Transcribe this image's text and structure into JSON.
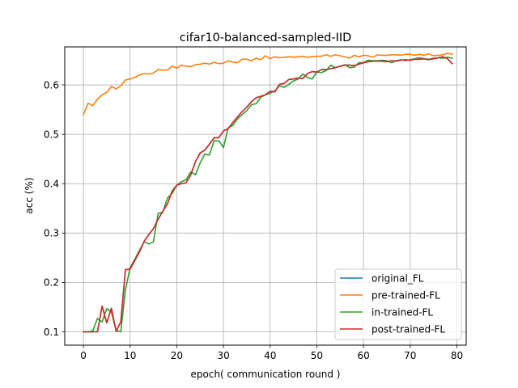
{
  "chart_data": {
    "type": "line",
    "title": "cifar10-balanced-sampled-IID",
    "xlabel": "epoch( communication round )",
    "ylabel": "acc (%)",
    "xlim": [
      -4,
      82
    ],
    "ylim": [
      0.073,
      0.677
    ],
    "xticks": [
      0,
      10,
      20,
      30,
      40,
      50,
      60,
      70,
      80
    ],
    "yticks": [
      0.1,
      0.2,
      0.3,
      0.4,
      0.5,
      0.6
    ],
    "xtick_labels": [
      "0",
      "10",
      "20",
      "30",
      "40",
      "50",
      "60",
      "70",
      "80"
    ],
    "ytick_labels": [
      "0.1",
      "0.2",
      "0.3",
      "0.4",
      "0.5",
      "0.6"
    ],
    "grid": true,
    "legend_position": "lower-right",
    "series": [
      {
        "name": "original_FL",
        "color": "#1f77b4",
        "x": [
          0,
          1,
          2,
          3,
          4,
          5,
          6,
          7,
          8,
          9,
          10,
          11,
          12,
          13,
          14,
          15,
          16,
          17,
          18,
          19,
          20,
          21,
          22,
          23,
          24,
          25,
          26,
          27,
          28,
          29,
          30,
          31,
          32,
          33,
          34,
          35,
          36,
          37,
          38,
          39,
          40,
          41,
          42,
          43,
          44,
          45,
          46,
          47,
          48,
          49,
          50,
          51,
          52,
          53,
          54,
          55,
          56,
          57,
          58,
          59,
          60,
          61,
          62,
          63,
          64,
          65,
          66,
          67,
          68,
          69,
          70,
          71,
          72,
          73,
          74,
          75,
          76,
          77,
          78,
          79
        ],
        "values": [
          0.1,
          0.1,
          0.1,
          0.1,
          0.152,
          0.118,
          0.148,
          0.101,
          0.12,
          0.226,
          0.227,
          0.244,
          0.262,
          0.283,
          0.297,
          0.309,
          0.328,
          0.344,
          0.359,
          0.385,
          0.397,
          0.4,
          0.402,
          0.418,
          0.445,
          0.462,
          0.468,
          0.48,
          0.493,
          0.493,
          0.507,
          0.511,
          0.524,
          0.535,
          0.546,
          0.555,
          0.566,
          0.574,
          0.577,
          0.58,
          0.587,
          0.586,
          0.601,
          0.603,
          0.611,
          0.612,
          0.614,
          0.613,
          0.623,
          0.627,
          0.626,
          0.631,
          0.631,
          0.633,
          0.635,
          0.638,
          0.64,
          0.64,
          0.639,
          0.642,
          0.645,
          0.647,
          0.648,
          0.648,
          0.648,
          0.647,
          0.649,
          0.648,
          0.65,
          0.651,
          0.65,
          0.652,
          0.652,
          0.653,
          0.651,
          0.653,
          0.655,
          0.657,
          0.653,
          0.643
        ]
      },
      {
        "name": "pre-trained-FL",
        "color": "#ff7f0e",
        "x": [
          0,
          1,
          2,
          3,
          4,
          5,
          6,
          7,
          8,
          9,
          10,
          11,
          12,
          13,
          14,
          15,
          16,
          17,
          18,
          19,
          20,
          21,
          22,
          23,
          24,
          25,
          26,
          27,
          28,
          29,
          30,
          31,
          32,
          33,
          34,
          35,
          36,
          37,
          38,
          39,
          40,
          41,
          42,
          43,
          44,
          45,
          46,
          47,
          48,
          49,
          50,
          51,
          52,
          53,
          54,
          55,
          56,
          57,
          58,
          59,
          60,
          61,
          62,
          63,
          64,
          65,
          66,
          67,
          68,
          69,
          70,
          71,
          72,
          73,
          74,
          75,
          76,
          77,
          78,
          79
        ],
        "values": [
          0.54,
          0.563,
          0.558,
          0.571,
          0.58,
          0.585,
          0.597,
          0.592,
          0.598,
          0.61,
          0.612,
          0.615,
          0.62,
          0.623,
          0.622,
          0.624,
          0.631,
          0.63,
          0.63,
          0.638,
          0.634,
          0.64,
          0.638,
          0.637,
          0.641,
          0.642,
          0.644,
          0.642,
          0.646,
          0.643,
          0.644,
          0.649,
          0.646,
          0.645,
          0.652,
          0.652,
          0.649,
          0.654,
          0.651,
          0.659,
          0.653,
          0.657,
          0.655,
          0.656,
          0.657,
          0.656,
          0.657,
          0.658,
          0.656,
          0.657,
          0.658,
          0.658,
          0.661,
          0.658,
          0.661,
          0.659,
          0.657,
          0.654,
          0.66,
          0.657,
          0.66,
          0.659,
          0.656,
          0.661,
          0.66,
          0.66,
          0.661,
          0.661,
          0.66,
          0.662,
          0.662,
          0.66,
          0.662,
          0.66,
          0.663,
          0.659,
          0.66,
          0.661,
          0.664,
          0.662
        ]
      },
      {
        "name": "in-trained-FL",
        "color": "#2ca02c",
        "x": [
          0,
          1,
          2,
          3,
          4,
          5,
          6,
          7,
          8,
          9,
          10,
          11,
          12,
          13,
          14,
          15,
          16,
          17,
          18,
          19,
          20,
          21,
          22,
          23,
          24,
          25,
          26,
          27,
          28,
          29,
          30,
          31,
          32,
          33,
          34,
          35,
          36,
          37,
          38,
          39,
          40,
          41,
          42,
          43,
          44,
          45,
          46,
          47,
          48,
          49,
          50,
          51,
          52,
          53,
          54,
          55,
          56,
          57,
          58,
          59,
          60,
          61,
          62,
          63,
          64,
          65,
          66,
          67,
          68,
          69,
          70,
          71,
          72,
          73,
          74,
          75,
          76,
          77,
          78,
          79
        ],
        "values": [
          0.1,
          0.1,
          0.102,
          0.127,
          0.12,
          0.147,
          0.14,
          0.103,
          0.1,
          0.185,
          0.23,
          0.247,
          0.265,
          0.282,
          0.278,
          0.282,
          0.34,
          0.342,
          0.371,
          0.38,
          0.397,
          0.404,
          0.408,
          0.424,
          0.418,
          0.442,
          0.46,
          0.458,
          0.487,
          0.487,
          0.473,
          0.513,
          0.518,
          0.531,
          0.54,
          0.548,
          0.56,
          0.562,
          0.575,
          0.58,
          0.583,
          0.588,
          0.598,
          0.595,
          0.601,
          0.608,
          0.612,
          0.622,
          0.615,
          0.612,
          0.626,
          0.625,
          0.629,
          0.64,
          0.635,
          0.638,
          0.641,
          0.635,
          0.636,
          0.645,
          0.645,
          0.65,
          0.649,
          0.649,
          0.65,
          0.649,
          0.645,
          0.649,
          0.651,
          0.649,
          0.651,
          0.653,
          0.655,
          0.653,
          0.652,
          0.654,
          0.655,
          0.654,
          0.656,
          0.654
        ]
      },
      {
        "name": "post-trained-FL",
        "color": "#d62728",
        "x": [
          0,
          1,
          2,
          3,
          4,
          5,
          6,
          7,
          8,
          9,
          10,
          11,
          12,
          13,
          14,
          15,
          16,
          17,
          18,
          19,
          20,
          21,
          22,
          23,
          24,
          25,
          26,
          27,
          28,
          29,
          30,
          31,
          32,
          33,
          34,
          35,
          36,
          37,
          38,
          39,
          40,
          41,
          42,
          43,
          44,
          45,
          46,
          47,
          48,
          49,
          50,
          51,
          52,
          53,
          54,
          55,
          56,
          57,
          58,
          59,
          60,
          61,
          62,
          63,
          64,
          65,
          66,
          67,
          68,
          69,
          70,
          71,
          72,
          73,
          74,
          75,
          76,
          77,
          78,
          79
        ],
        "values": [
          0.1,
          0.1,
          0.1,
          0.1,
          0.152,
          0.118,
          0.148,
          0.101,
          0.12,
          0.226,
          0.227,
          0.244,
          0.262,
          0.283,
          0.297,
          0.309,
          0.328,
          0.344,
          0.359,
          0.385,
          0.397,
          0.4,
          0.402,
          0.418,
          0.445,
          0.462,
          0.468,
          0.48,
          0.493,
          0.493,
          0.507,
          0.511,
          0.524,
          0.535,
          0.546,
          0.555,
          0.566,
          0.574,
          0.577,
          0.58,
          0.587,
          0.586,
          0.601,
          0.603,
          0.611,
          0.612,
          0.614,
          0.613,
          0.623,
          0.627,
          0.626,
          0.631,
          0.631,
          0.633,
          0.635,
          0.638,
          0.64,
          0.64,
          0.639,
          0.642,
          0.645,
          0.647,
          0.648,
          0.648,
          0.648,
          0.647,
          0.649,
          0.648,
          0.65,
          0.651,
          0.65,
          0.652,
          0.652,
          0.653,
          0.651,
          0.653,
          0.655,
          0.657,
          0.653,
          0.643
        ]
      }
    ]
  }
}
